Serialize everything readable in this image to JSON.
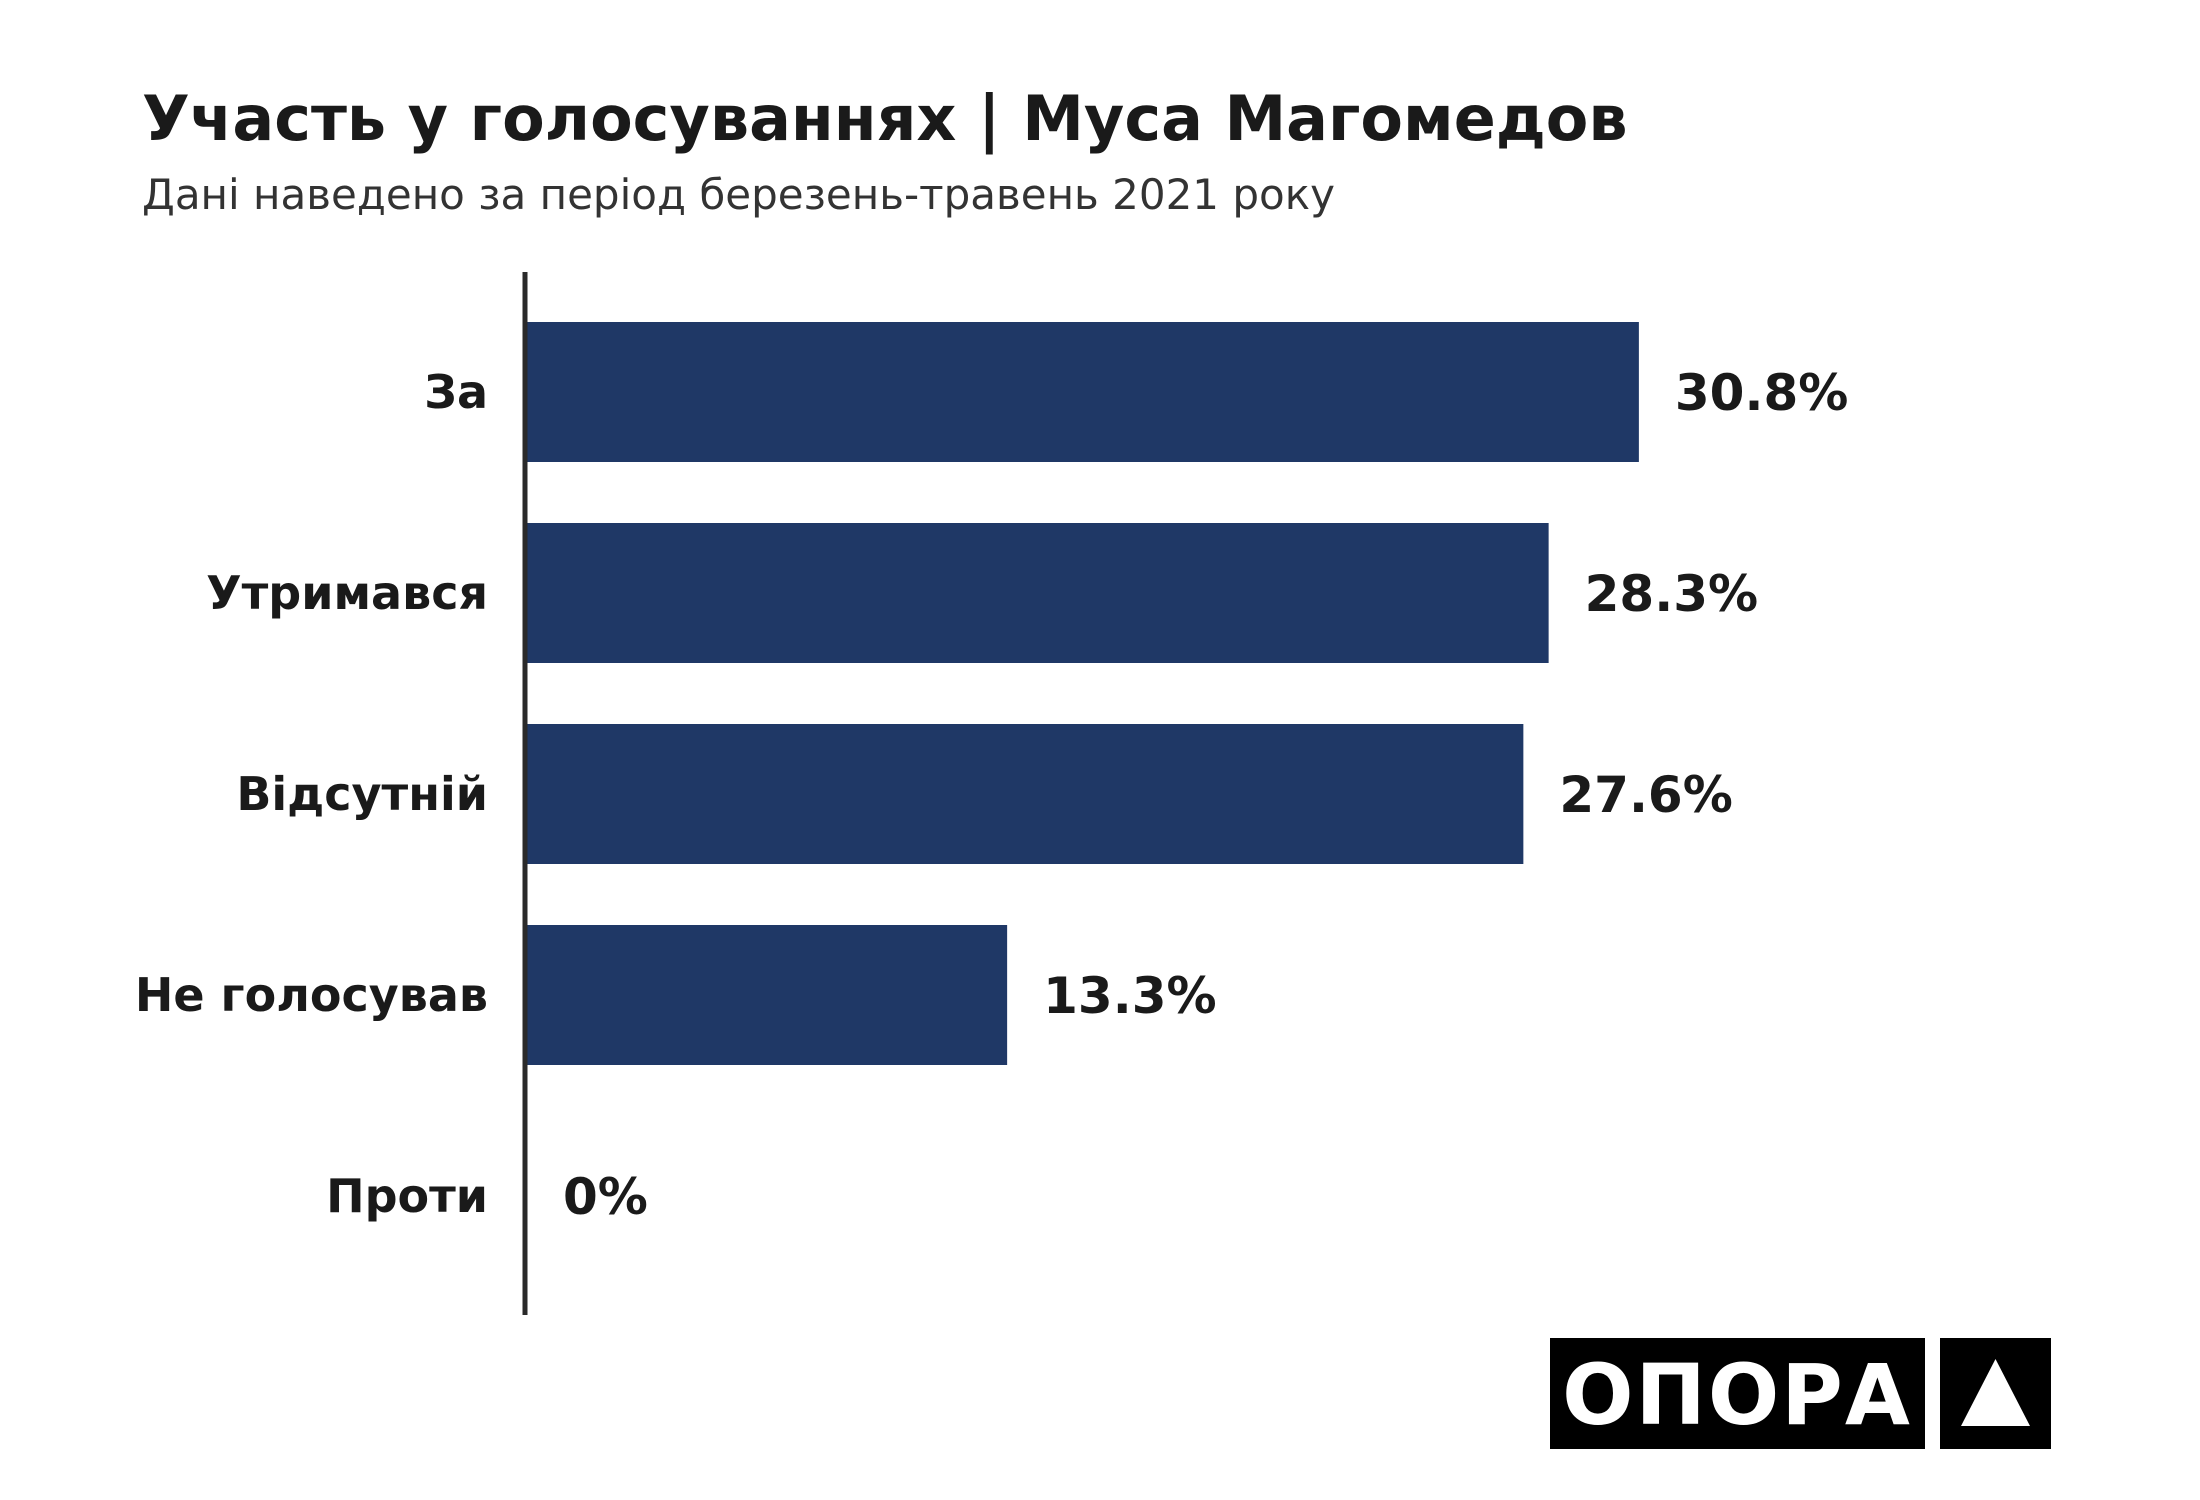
{
  "chart_data": {
    "type": "bar",
    "orientation": "horizontal",
    "title": "Участь у голосуваннях | Муса Магомедов",
    "subtitle": "Дані наведено за період березень-травень 2021 року",
    "categories": [
      "За",
      "Утримався",
      "Відсутній",
      "Не голосував",
      "Проти"
    ],
    "values": [
      30.8,
      28.3,
      27.6,
      13.3,
      0
    ],
    "value_labels": [
      "30.8%",
      "28.3%",
      "27.6%",
      "13.3%",
      "0%"
    ],
    "unit": "%",
    "xlim": [
      0,
      35
    ],
    "grid": false,
    "legend": "none",
    "bar_color": "#1f3866",
    "axis_color": "#2a2a2a"
  },
  "logo": {
    "text": "ОПОРА",
    "icon": "triangle-icon",
    "background": "#000000",
    "foreground": "#ffffff"
  }
}
